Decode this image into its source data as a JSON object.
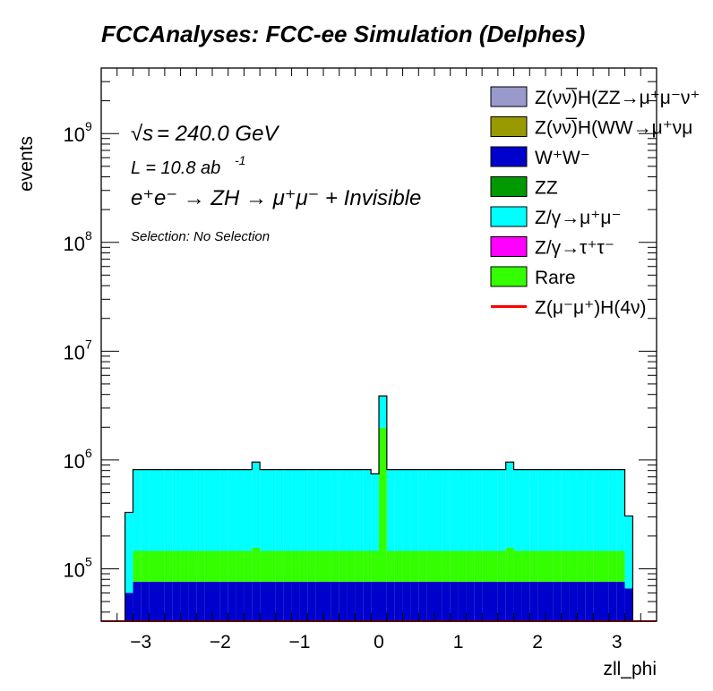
{
  "chart_data": {
    "type": "bar",
    "title": "FCCAnalyses: FCC-ee Simulation (Delphes)",
    "xlabel": "zll_phi",
    "ylabel": "events",
    "xlim": [
      -3.5,
      3.5
    ],
    "ylim": [
      33000,
      4000000000
    ],
    "yscale": "log",
    "stacked": true,
    "xticks": [
      -3,
      -2,
      -1,
      0,
      1,
      2,
      3
    ],
    "xtick_labels": [
      "−3",
      "−2",
      "−1",
      "0",
      "1",
      "2",
      "3"
    ],
    "yticks": [
      100000,
      1000000,
      10000000,
      100000000,
      1000000000
    ],
    "ytick_labels": [
      {
        "base": "10",
        "exp": "5"
      },
      {
        "base": "10",
        "exp": "6"
      },
      {
        "base": "10",
        "exp": "7"
      },
      {
        "base": "10",
        "exp": "8"
      },
      {
        "base": "10",
        "exp": "9"
      }
    ],
    "annotations": {
      "sqrt_symbol": "√s",
      "energy": " = 240.0 GeV",
      "lumi_text": "L = 10.8 ab",
      "lumi_exp": "-1",
      "process_text": "e⁺e⁻ → ZH → μ⁺μ⁻ + Invisible",
      "selection": "Selection: No Selection"
    },
    "legend_placement": "top-right",
    "legend": [
      {
        "label": "Z(νν̅)H(ZZ→μ⁺μ⁻ν⁺",
        "color": "#9999cc",
        "kind": "fill"
      },
      {
        "label": "Z(νν̅)H(WW→μ⁺νμ",
        "color": "#999900",
        "kind": "fill"
      },
      {
        "label": "W⁺W⁻",
        "color": "#0000cc",
        "kind": "fill"
      },
      {
        "label": "ZZ",
        "color": "#009900",
        "kind": "fill"
      },
      {
        "label": "Z/γ→μ⁺μ⁻",
        "color": "#00ffff",
        "kind": "fill"
      },
      {
        "label": "Z/γ→τ⁺τ⁻",
        "color": "#ff00ff",
        "kind": "fill"
      },
      {
        "label": "Rare",
        "color": "#33ff00",
        "kind": "fill"
      },
      {
        "label": "Z(μ⁻μ⁺)H(4ν)",
        "color": "#ff0000",
        "kind": "line"
      }
    ],
    "bin_edges": [
      -3.5,
      -3.3,
      -3.2,
      -3.1,
      -3.0,
      -2.9,
      -2.8,
      -2.7,
      -2.6,
      -2.5,
      -2.4,
      -2.3,
      -2.2,
      -2.1,
      -2.0,
      -1.9,
      -1.8,
      -1.7,
      -1.6,
      -1.5,
      -1.4,
      -1.3,
      -1.2,
      -1.1,
      -1.0,
      -0.9,
      -0.8,
      -0.7,
      -0.6,
      -0.5,
      -0.4,
      -0.3,
      -0.2,
      -0.1,
      0.0,
      0.1,
      0.2,
      0.3,
      0.4,
      0.5,
      0.6,
      0.7,
      0.8,
      0.9,
      1.0,
      1.1,
      1.2,
      1.3,
      1.4,
      1.5,
      1.6,
      1.7,
      1.8,
      1.9,
      2.0,
      2.1,
      2.2,
      2.3,
      2.4,
      2.5,
      2.6,
      2.7,
      2.8,
      2.9,
      3.0,
      3.1,
      3.2,
      3.3,
      3.5
    ],
    "series": [
      {
        "name": "W⁺W⁻",
        "color": "#0000cc",
        "values": [
          0,
          0,
          60000,
          76000,
          76000,
          76000,
          76000,
          76000,
          76000,
          76000,
          76000,
          76000,
          76000,
          76000,
          76000,
          76000,
          76000,
          76000,
          76000,
          76000,
          76000,
          76000,
          76000,
          76000,
          76000,
          76000,
          76000,
          76000,
          76000,
          76000,
          76000,
          76000,
          76000,
          76000,
          76000,
          76000,
          76000,
          76000,
          76000,
          76000,
          76000,
          76000,
          76000,
          76000,
          76000,
          76000,
          76000,
          76000,
          76000,
          76000,
          76000,
          76000,
          76000,
          76000,
          76000,
          76000,
          76000,
          76000,
          76000,
          76000,
          76000,
          76000,
          76000,
          76000,
          76000,
          66000,
          0,
          0
        ]
      },
      {
        "name": "Rare",
        "color": "#33ff00",
        "values": [
          0,
          0,
          0,
          70000,
          70000,
          70000,
          70000,
          70000,
          70000,
          70000,
          70000,
          70000,
          70000,
          70000,
          70000,
          70000,
          70000,
          70000,
          80000,
          70000,
          70000,
          70000,
          70000,
          70000,
          70000,
          70000,
          70000,
          70000,
          70000,
          70000,
          70000,
          70000,
          70000,
          70000,
          1900000,
          70000,
          70000,
          70000,
          70000,
          70000,
          70000,
          70000,
          70000,
          70000,
          70000,
          70000,
          70000,
          70000,
          70000,
          70000,
          80000,
          70000,
          70000,
          70000,
          70000,
          70000,
          70000,
          70000,
          70000,
          70000,
          70000,
          70000,
          70000,
          70000,
          70000,
          0,
          0,
          0
        ]
      },
      {
        "name": "Z/γ→μ⁺μ⁻",
        "color": "#00ffff",
        "values": [
          0,
          0,
          270000,
          670000,
          670000,
          670000,
          670000,
          670000,
          670000,
          670000,
          670000,
          670000,
          670000,
          670000,
          670000,
          670000,
          670000,
          670000,
          800000,
          670000,
          670000,
          670000,
          670000,
          670000,
          670000,
          670000,
          670000,
          670000,
          670000,
          670000,
          670000,
          670000,
          670000,
          600000,
          1900000,
          670000,
          670000,
          670000,
          670000,
          670000,
          670000,
          670000,
          670000,
          670000,
          670000,
          670000,
          670000,
          670000,
          670000,
          670000,
          800000,
          670000,
          670000,
          670000,
          670000,
          670000,
          670000,
          670000,
          670000,
          670000,
          670000,
          670000,
          670000,
          670000,
          670000,
          240000,
          0,
          0
        ]
      }
    ],
    "signal": {
      "name": "Z(μ⁻μ⁺)H(4ν)",
      "color": "#ff0000",
      "values": [
        1,
        1,
        1,
        1,
        1,
        1,
        1,
        1,
        1,
        1,
        1,
        1,
        1,
        1,
        1,
        1,
        1,
        1,
        1,
        1,
        1,
        1,
        1,
        1,
        1,
        1,
        1,
        1,
        1,
        1,
        1,
        1,
        1,
        1,
        1,
        1,
        1,
        1,
        1,
        1,
        1,
        1,
        1,
        1,
        1,
        1,
        1,
        1,
        1,
        1,
        1,
        1,
        1,
        1,
        1,
        1,
        1,
        1,
        1,
        1,
        1,
        1,
        1,
        1,
        1,
        1,
        1,
        1
      ]
    }
  }
}
